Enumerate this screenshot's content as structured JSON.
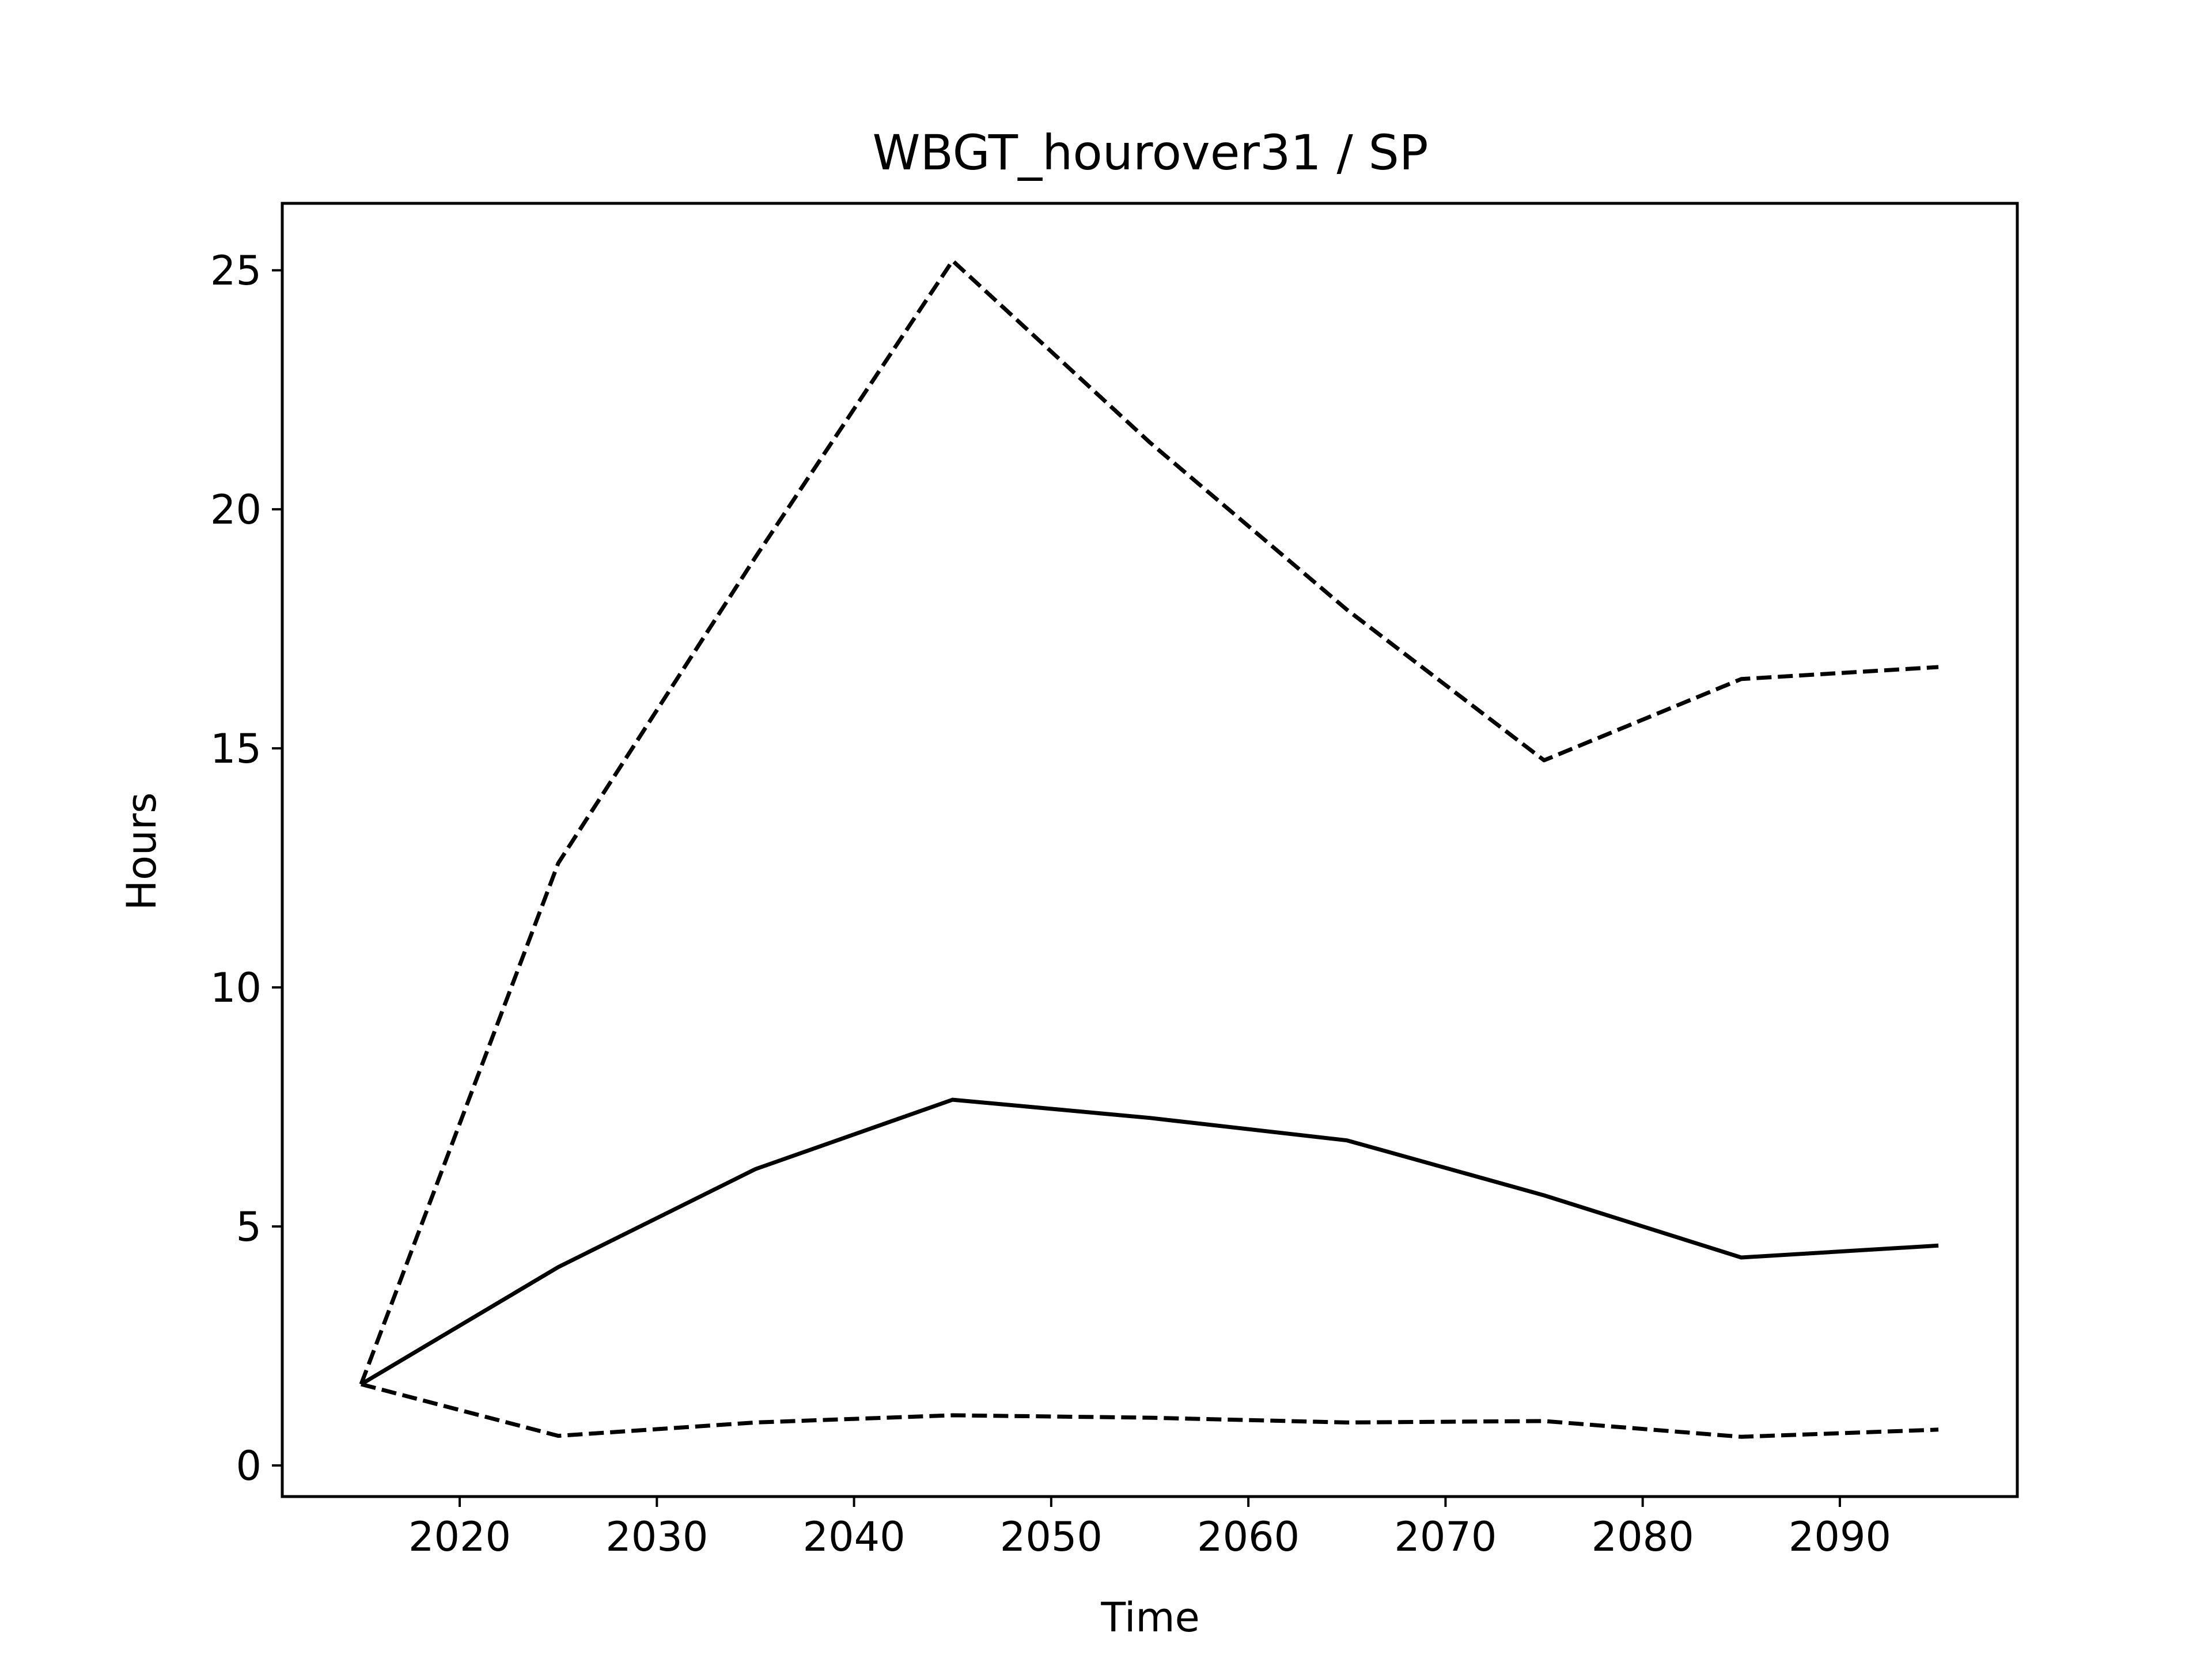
{
  "chart_data": {
    "type": "line",
    "title": "WBGT_hourover31 / SP",
    "xlabel": "Time",
    "ylabel": "Hours",
    "xlim": [
      2011,
      2099
    ],
    "ylim": [
      -0.65,
      26.4
    ],
    "xticks": [
      2020,
      2030,
      2040,
      2050,
      2060,
      2070,
      2080,
      2090
    ],
    "yticks": [
      0,
      5,
      10,
      15,
      20,
      25
    ],
    "x": [
      2015,
      2025,
      2035,
      2045,
      2055,
      2065,
      2075,
      2085,
      2095
    ],
    "grid": false,
    "series": [
      {
        "style": "solid",
        "color": "#000000",
        "values": [
          1.7,
          4.15,
          6.2,
          7.65,
          7.27,
          6.8,
          5.65,
          4.35,
          4.6
        ]
      },
      {
        "style": "dashed",
        "color": "#000000",
        "values": [
          1.7,
          12.6,
          19.0,
          25.2,
          21.4,
          17.9,
          14.75,
          16.45,
          16.7
        ]
      },
      {
        "style": "dashed",
        "color": "#000000",
        "values": [
          1.7,
          0.62,
          0.9,
          1.05,
          1.0,
          0.9,
          0.93,
          0.6,
          0.75
        ]
      }
    ]
  }
}
